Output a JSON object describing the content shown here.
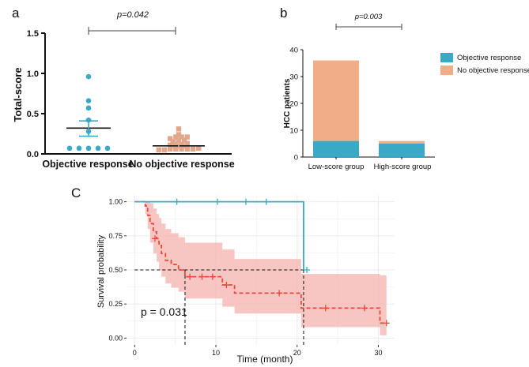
{
  "colors": {
    "blue": "#3aa9c6",
    "orange": "#f0ad88",
    "peach": "#e3a68a",
    "red": "#e8483a",
    "ribbon": "#f6b3ae",
    "grid": "#ebebeb",
    "dash": "#111111"
  },
  "chart_data": [
    {
      "id": "a",
      "type": "scatter",
      "panel_label": "a",
      "ylabel": "Total-score",
      "ylim": [
        0,
        1.5
      ],
      "yticks": [
        "0.0",
        "0.5",
        "1.0",
        "1.5"
      ],
      "categories": [
        "Objective response",
        "No objective response"
      ],
      "p_text": "p=0.042",
      "groups": [
        {
          "name": "Objective response",
          "values": [
            0.96,
            0.66,
            0.57,
            0.42,
            0.28,
            0.07,
            0.07,
            0.07,
            0.07,
            0.07
          ],
          "mean": 0.32,
          "err_low": 0.22,
          "err_high": 0.41
        },
        {
          "name": "No objective response",
          "values": [
            0.31,
            0.24,
            0.21,
            0.21,
            0.21,
            0.19,
            0.17,
            0.17,
            0.15,
            0.13,
            0.12,
            0.12,
            0.11,
            0.1,
            0.1,
            0.08,
            0.08,
            0.07,
            0.06,
            0.06,
            0.06,
            0.06,
            0.06,
            0.05,
            0.05
          ],
          "mean": 0.1,
          "err_low": 0.08,
          "err_high": 0.12
        }
      ]
    },
    {
      "id": "b",
      "type": "bar",
      "panel_label": "b",
      "ylabel": "HCC patients",
      "ylim": [
        0,
        40
      ],
      "yticks": [
        "0",
        "10",
        "20",
        "30",
        "40"
      ],
      "categories": [
        "Low-score group",
        "High-score group"
      ],
      "series": [
        {
          "name": "Objective response",
          "values": [
            6,
            5
          ]
        },
        {
          "name": "No objective response",
          "values": [
            30,
            1
          ]
        }
      ],
      "p_text": "p=0.003"
    },
    {
      "id": "c",
      "type": "line",
      "panel_label": "C",
      "xlabel": "Time (month)",
      "ylabel": "Survival probability",
      "xlim": [
        -1,
        32
      ],
      "ylim": [
        0,
        1
      ],
      "xticks": [
        "0",
        "10",
        "20",
        "30"
      ],
      "yticks": [
        "0.00",
        "0.25",
        "0.50",
        "0.75",
        "1.00"
      ],
      "p_text": "p = 0.031",
      "series": [
        {
          "name": "Objective response",
          "steps": [
            [
              0,
              1.0
            ],
            [
              20.8,
              1.0
            ],
            [
              20.8,
              0.5
            ]
          ],
          "censor": [
            [
              5.2,
              1.0
            ],
            [
              10.2,
              1.0
            ],
            [
              13.7,
              1.0
            ],
            [
              16.2,
              1.0
            ],
            [
              21.2,
              0.5
            ]
          ]
        },
        {
          "name": "No objective response",
          "steps": [
            [
              0,
              1.0
            ],
            [
              1.3,
              1.0
            ],
            [
              1.3,
              0.97
            ],
            [
              1.6,
              0.97
            ],
            [
              1.6,
              0.9
            ],
            [
              1.9,
              0.9
            ],
            [
              1.9,
              0.84
            ],
            [
              2.3,
              0.84
            ],
            [
              2.3,
              0.78
            ],
            [
              2.7,
              0.78
            ],
            [
              2.7,
              0.73
            ],
            [
              3.0,
              0.73
            ],
            [
              3.0,
              0.68
            ],
            [
              3.3,
              0.68
            ],
            [
              3.3,
              0.62
            ],
            [
              3.8,
              0.62
            ],
            [
              3.8,
              0.57
            ],
            [
              4.5,
              0.57
            ],
            [
              4.5,
              0.54
            ],
            [
              5.4,
              0.54
            ],
            [
              5.4,
              0.5
            ],
            [
              6.2,
              0.5
            ],
            [
              6.2,
              0.45
            ],
            [
              10.8,
              0.45
            ],
            [
              10.8,
              0.39
            ],
            [
              12.3,
              0.39
            ],
            [
              12.3,
              0.33
            ],
            [
              20.5,
              0.33
            ],
            [
              20.5,
              0.22
            ],
            [
              30.2,
              0.22
            ],
            [
              30.2,
              0.11
            ],
            [
              31.0,
              0.11
            ]
          ],
          "censor": [
            [
              2.5,
              0.73
            ],
            [
              6.8,
              0.45
            ],
            [
              8.3,
              0.45
            ],
            [
              9.6,
              0.45
            ],
            [
              11.3,
              0.39
            ],
            [
              17.8,
              0.33
            ],
            [
              23.5,
              0.22
            ],
            [
              28.3,
              0.22
            ],
            [
              31.0,
              0.11
            ]
          ],
          "band_upper": [
            [
              0,
              1.0
            ],
            [
              1.3,
              1.0
            ],
            [
              1.6,
              1.0
            ],
            [
              1.9,
              0.99
            ],
            [
              2.3,
              0.95
            ],
            [
              2.7,
              0.91
            ],
            [
              3.0,
              0.88
            ],
            [
              3.3,
              0.84
            ],
            [
              3.8,
              0.8
            ],
            [
              4.5,
              0.77
            ],
            [
              5.4,
              0.74
            ],
            [
              6.2,
              0.7
            ],
            [
              10.8,
              0.65
            ],
            [
              12.3,
              0.58
            ],
            [
              20.5,
              0.47
            ],
            [
              30.2,
              0.46
            ],
            [
              31.0,
              0.46
            ]
          ],
          "band_lower": [
            [
              0,
              1.0
            ],
            [
              1.3,
              0.91
            ],
            [
              1.6,
              0.8
            ],
            [
              1.9,
              0.7
            ],
            [
              2.3,
              0.62
            ],
            [
              2.7,
              0.56
            ],
            [
              3.0,
              0.5
            ],
            [
              3.3,
              0.45
            ],
            [
              3.8,
              0.4
            ],
            [
              4.5,
              0.37
            ],
            [
              5.4,
              0.34
            ],
            [
              6.2,
              0.29
            ],
            [
              10.8,
              0.23
            ],
            [
              12.3,
              0.18
            ],
            [
              20.5,
              0.08
            ],
            [
              30.2,
              0.02
            ],
            [
              31.0,
              0.02
            ]
          ]
        }
      ],
      "median_lines": [
        6.2,
        20.8
      ]
    }
  ]
}
